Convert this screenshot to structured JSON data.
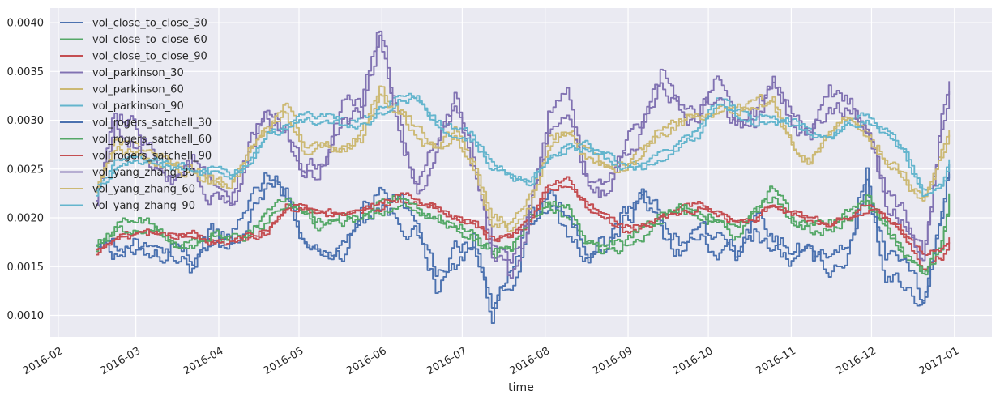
{
  "chart_data": {
    "type": "line",
    "xlabel": "time",
    "ylabel": "",
    "xlim": [
      "2016-01-29",
      "2017-01-15"
    ],
    "ylim": [
      0.00078,
      0.00415
    ],
    "x_ticks": [
      {
        "date": "2016-02-01",
        "label": "2016-02"
      },
      {
        "date": "2016-03-01",
        "label": "2016-03"
      },
      {
        "date": "2016-04-01",
        "label": "2016-04"
      },
      {
        "date": "2016-05-01",
        "label": "2016-05"
      },
      {
        "date": "2016-06-01",
        "label": "2016-06"
      },
      {
        "date": "2016-07-01",
        "label": "2016-07"
      },
      {
        "date": "2016-08-01",
        "label": "2016-08"
      },
      {
        "date": "2016-09-01",
        "label": "2016-09"
      },
      {
        "date": "2016-10-01",
        "label": "2016-10"
      },
      {
        "date": "2016-11-01",
        "label": "2016-11"
      },
      {
        "date": "2016-12-01",
        "label": "2016-12"
      },
      {
        "date": "2017-01-01",
        "label": "2017-01"
      }
    ],
    "y_ticks": [
      "0.0010",
      "0.0015",
      "0.0020",
      "0.0025",
      "0.0030",
      "0.0035",
      "0.0040"
    ],
    "grid": true,
    "legend_position": "top-left",
    "background_color": "#eaeaf2",
    "x": [
      "2016-02-15",
      "2016-02-22",
      "2016-03-01",
      "2016-03-08",
      "2016-03-15",
      "2016-03-22",
      "2016-03-29",
      "2016-04-05",
      "2016-04-12",
      "2016-04-19",
      "2016-04-26",
      "2016-05-03",
      "2016-05-10",
      "2016-05-17",
      "2016-05-24",
      "2016-05-31",
      "2016-06-07",
      "2016-06-14",
      "2016-06-21",
      "2016-06-28",
      "2016-07-05",
      "2016-07-12",
      "2016-07-19",
      "2016-07-26",
      "2016-08-02",
      "2016-08-09",
      "2016-08-16",
      "2016-08-23",
      "2016-08-30",
      "2016-09-06",
      "2016-09-13",
      "2016-09-20",
      "2016-09-27",
      "2016-10-04",
      "2016-10-11",
      "2016-10-18",
      "2016-10-25",
      "2016-11-01",
      "2016-11-08",
      "2016-11-15",
      "2016-11-22",
      "2016-11-29",
      "2016-12-06",
      "2016-12-13",
      "2016-12-20",
      "2016-12-27",
      "2016-12-30"
    ],
    "series": [
      {
        "name": "vol_close_to_close_30",
        "color": "#4c72b0",
        "values": [
          0.0018,
          0.00165,
          0.0017,
          0.00165,
          0.0016,
          0.0015,
          0.00165,
          0.00165,
          0.00195,
          0.00235,
          0.00225,
          0.0017,
          0.0016,
          0.00165,
          0.002,
          0.00215,
          0.002,
          0.0018,
          0.0013,
          0.0015,
          0.0018,
          0.00105,
          0.0014,
          0.002,
          0.00215,
          0.0018,
          0.0016,
          0.00165,
          0.002,
          0.0023,
          0.00185,
          0.00165,
          0.0018,
          0.00165,
          0.0016,
          0.00185,
          0.0017,
          0.00155,
          0.0016,
          0.0015,
          0.0016,
          0.0024,
          0.0014,
          0.00135,
          0.0011,
          0.00205,
          0.00245
        ]
      },
      {
        "name": "vol_close_to_close_60",
        "color": "#55a868",
        "values": [
          0.0017,
          0.0019,
          0.002,
          0.00195,
          0.0017,
          0.00175,
          0.0018,
          0.00175,
          0.0018,
          0.0021,
          0.00225,
          0.002,
          0.0019,
          0.00195,
          0.002,
          0.00205,
          0.00215,
          0.0021,
          0.002,
          0.00195,
          0.00185,
          0.0016,
          0.00165,
          0.002,
          0.00215,
          0.002,
          0.0017,
          0.00165,
          0.0017,
          0.0018,
          0.002,
          0.0021,
          0.00205,
          0.00195,
          0.0018,
          0.0021,
          0.0023,
          0.002,
          0.00185,
          0.0019,
          0.002,
          0.00215,
          0.0019,
          0.0016,
          0.0014,
          0.0017,
          0.00225
        ]
      },
      {
        "name": "vol_close_to_close_90",
        "color": "#c44e52",
        "values": [
          0.00165,
          0.0018,
          0.00185,
          0.00185,
          0.0018,
          0.00185,
          0.00175,
          0.0018,
          0.0018,
          0.00185,
          0.00215,
          0.0021,
          0.002,
          0.00205,
          0.00205,
          0.0021,
          0.0022,
          0.00215,
          0.0021,
          0.002,
          0.00195,
          0.00175,
          0.0018,
          0.00195,
          0.00235,
          0.0024,
          0.0021,
          0.002,
          0.00185,
          0.0019,
          0.002,
          0.0021,
          0.00215,
          0.00205,
          0.00195,
          0.002,
          0.0021,
          0.00205,
          0.00195,
          0.0019,
          0.002,
          0.0021,
          0.002,
          0.0018,
          0.0015,
          0.0016,
          0.00175
        ]
      },
      {
        "name": "vol_parkinson_30",
        "color": "#8172b2",
        "values": [
          0.00225,
          0.003,
          0.0029,
          0.00265,
          0.0024,
          0.0026,
          0.0023,
          0.0021,
          0.00275,
          0.0031,
          0.0029,
          0.00245,
          0.00265,
          0.0031,
          0.00315,
          0.00395,
          0.003,
          0.0023,
          0.0028,
          0.0032,
          0.0026,
          0.00175,
          0.0014,
          0.00215,
          0.00305,
          0.0032,
          0.00245,
          0.0023,
          0.00275,
          0.003,
          0.0035,
          0.0032,
          0.00305,
          0.0034,
          0.003,
          0.003,
          0.00345,
          0.003,
          0.0029,
          0.0033,
          0.0032,
          0.003,
          0.00225,
          0.002,
          0.00165,
          0.003,
          0.0034
        ]
      },
      {
        "name": "vol_parkinson_60",
        "color": "#ccb974",
        "values": [
          0.00235,
          0.00275,
          0.0027,
          0.00265,
          0.00255,
          0.0025,
          0.0024,
          0.00235,
          0.0027,
          0.00295,
          0.0032,
          0.0027,
          0.0028,
          0.00275,
          0.00285,
          0.0033,
          0.0031,
          0.0029,
          0.0027,
          0.0029,
          0.00255,
          0.002,
          0.00195,
          0.0022,
          0.0028,
          0.0029,
          0.0027,
          0.00255,
          0.0025,
          0.0027,
          0.0029,
          0.003,
          0.0031,
          0.0031,
          0.00315,
          0.0032,
          0.0032,
          0.00275,
          0.0026,
          0.0029,
          0.00305,
          0.0029,
          0.0026,
          0.00245,
          0.0022,
          0.0027,
          0.0029
        ]
      },
      {
        "name": "vol_parkinson_90",
        "color": "#64b5cd",
        "values": [
          0.0023,
          0.00255,
          0.00265,
          0.0026,
          0.00255,
          0.0025,
          0.0025,
          0.00245,
          0.00255,
          0.0029,
          0.00295,
          0.00305,
          0.00305,
          0.003,
          0.003,
          0.0031,
          0.00325,
          0.00325,
          0.003,
          0.0029,
          0.00285,
          0.00255,
          0.00245,
          0.0024,
          0.0026,
          0.00275,
          0.00275,
          0.00265,
          0.00255,
          0.00255,
          0.00265,
          0.0028,
          0.0029,
          0.00325,
          0.0031,
          0.003,
          0.00305,
          0.003,
          0.0029,
          0.00285,
          0.003,
          0.00305,
          0.0029,
          0.0027,
          0.0023,
          0.00235,
          0.0026
        ]
      },
      {
        "name": "vol_rogers_satchell_30",
        "color": "#4c72b0",
        "values": [
          0.00175,
          0.0017,
          0.00165,
          0.00175,
          0.0017,
          0.0016,
          0.00185,
          0.0018,
          0.00215,
          0.00245,
          0.0023,
          0.00175,
          0.0017,
          0.0017,
          0.00215,
          0.00225,
          0.0022,
          0.0019,
          0.0014,
          0.0017,
          0.0017,
          0.00115,
          0.0013,
          0.0019,
          0.00225,
          0.002,
          0.0017,
          0.00175,
          0.00195,
          0.0022,
          0.002,
          0.00175,
          0.0019,
          0.0018,
          0.00165,
          0.00195,
          0.0018,
          0.00165,
          0.00175,
          0.0016,
          0.00175,
          0.0025,
          0.0016,
          0.00145,
          0.0012,
          0.0021,
          0.00255
        ]
      },
      {
        "name": "vol_rogers_satchell_60",
        "color": "#55a868",
        "values": [
          0.00175,
          0.00185,
          0.0019,
          0.0019,
          0.00175,
          0.0017,
          0.00185,
          0.0018,
          0.00185,
          0.002,
          0.00215,
          0.00205,
          0.00195,
          0.002,
          0.002,
          0.0021,
          0.0022,
          0.00205,
          0.00195,
          0.0019,
          0.0018,
          0.00165,
          0.0017,
          0.00195,
          0.0022,
          0.0021,
          0.00175,
          0.0017,
          0.00175,
          0.0019,
          0.00205,
          0.0021,
          0.0021,
          0.002,
          0.00185,
          0.00205,
          0.0022,
          0.002,
          0.0019,
          0.00195,
          0.00205,
          0.0022,
          0.00195,
          0.00165,
          0.00145,
          0.00175,
          0.00225
        ]
      },
      {
        "name": "vol_rogers_satchell_90",
        "color": "#c44e52",
        "values": [
          0.0017,
          0.00175,
          0.0018,
          0.00185,
          0.0018,
          0.0018,
          0.00175,
          0.00175,
          0.0018,
          0.0019,
          0.0021,
          0.0021,
          0.00205,
          0.00205,
          0.0021,
          0.00215,
          0.00225,
          0.0022,
          0.0021,
          0.002,
          0.00195,
          0.0018,
          0.0018,
          0.00195,
          0.0023,
          0.00235,
          0.00215,
          0.002,
          0.0019,
          0.0019,
          0.002,
          0.00205,
          0.0021,
          0.00205,
          0.00195,
          0.002,
          0.0021,
          0.00205,
          0.002,
          0.00195,
          0.002,
          0.00215,
          0.002,
          0.00185,
          0.0016,
          0.0017,
          0.0018
        ]
      },
      {
        "name": "vol_yang_zhang_30",
        "color": "#8172b2",
        "values": [
          0.0022,
          0.0029,
          0.0028,
          0.00255,
          0.00235,
          0.0025,
          0.00225,
          0.00205,
          0.00265,
          0.003,
          0.00285,
          0.0024,
          0.00255,
          0.003,
          0.00305,
          0.0038,
          0.0029,
          0.00225,
          0.0027,
          0.0031,
          0.0025,
          0.0017,
          0.00135,
          0.00205,
          0.00295,
          0.0031,
          0.0024,
          0.00225,
          0.00265,
          0.0029,
          0.0034,
          0.00315,
          0.00295,
          0.0033,
          0.00295,
          0.00295,
          0.00335,
          0.00295,
          0.00285,
          0.0032,
          0.0031,
          0.00295,
          0.0022,
          0.00195,
          0.0016,
          0.0029,
          0.0033
        ]
      },
      {
        "name": "vol_yang_zhang_60",
        "color": "#ccb974",
        "values": [
          0.0023,
          0.0027,
          0.00265,
          0.0026,
          0.0025,
          0.00245,
          0.00235,
          0.0023,
          0.00265,
          0.0029,
          0.0031,
          0.00265,
          0.00275,
          0.0027,
          0.0028,
          0.00325,
          0.00305,
          0.00285,
          0.00265,
          0.00285,
          0.0025,
          0.00195,
          0.0019,
          0.00215,
          0.00275,
          0.00285,
          0.00265,
          0.0025,
          0.00245,
          0.00265,
          0.00285,
          0.00295,
          0.00305,
          0.00305,
          0.0031,
          0.00315,
          0.00315,
          0.0027,
          0.00255,
          0.00285,
          0.003,
          0.00285,
          0.00255,
          0.0024,
          0.00215,
          0.00265,
          0.00285
        ]
      },
      {
        "name": "vol_yang_zhang_90",
        "color": "#64b5cd",
        "values": [
          0.00225,
          0.0025,
          0.0026,
          0.00255,
          0.0025,
          0.00245,
          0.00245,
          0.0024,
          0.0025,
          0.00285,
          0.0029,
          0.003,
          0.003,
          0.00295,
          0.00295,
          0.00305,
          0.0032,
          0.0032,
          0.00295,
          0.00285,
          0.0028,
          0.0025,
          0.0024,
          0.00235,
          0.00255,
          0.0027,
          0.0027,
          0.0026,
          0.0025,
          0.0025,
          0.0026,
          0.00275,
          0.00285,
          0.0032,
          0.00305,
          0.00295,
          0.003,
          0.00295,
          0.00285,
          0.0028,
          0.00295,
          0.003,
          0.00285,
          0.00265,
          0.00225,
          0.0023,
          0.00255
        ]
      }
    ]
  }
}
